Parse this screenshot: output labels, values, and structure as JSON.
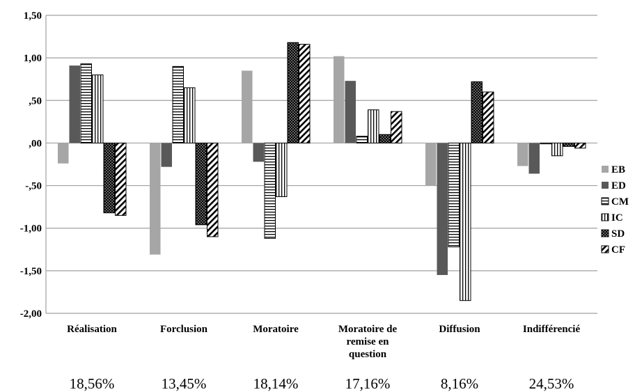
{
  "chart_data": {
    "type": "bar",
    "title": "",
    "xlabel": "",
    "ylabel": "",
    "ylim": [
      -2.0,
      1.5
    ],
    "y_ticks": [
      "1,50",
      "1,00",
      ",50",
      ",00",
      "-,50",
      "-1,00",
      "-1,50",
      "-2,00"
    ],
    "y_tick_values": [
      1.5,
      1.0,
      0.5,
      0.0,
      -0.5,
      -1.0,
      -1.5,
      -2.0
    ],
    "grid": "horizontal",
    "legend_position": "right",
    "categories": [
      [
        "Réalisation"
      ],
      [
        "Forclusion"
      ],
      [
        "Moratoire"
      ],
      [
        "Moratoire de",
        "remise en",
        "question"
      ],
      [
        "Diffusion"
      ],
      [
        "Indifférencié"
      ]
    ],
    "category_percentages": [
      "18,56%",
      "13,45%",
      "18,14%",
      "17,16%",
      "8,16%",
      "24,53%"
    ],
    "series": [
      {
        "name": "EB",
        "pattern": "solid-light",
        "color": "#a6a6a6",
        "values": [
          -0.24,
          -1.31,
          0.85,
          1.02,
          -0.5,
          -0.27
        ]
      },
      {
        "name": "ED",
        "pattern": "solid-dark",
        "color": "#595959",
        "values": [
          0.91,
          -0.28,
          -0.22,
          0.73,
          -1.55,
          -0.36
        ]
      },
      {
        "name": "CM",
        "pattern": "horizontal-stripes",
        "color": "#000000",
        "values": [
          0.93,
          0.9,
          -1.12,
          0.08,
          -1.22,
          -0.01
        ]
      },
      {
        "name": "IC",
        "pattern": "vertical-stripes",
        "color": "#000000",
        "values": [
          0.8,
          0.65,
          -0.63,
          0.39,
          -1.85,
          -0.15
        ]
      },
      {
        "name": "SD",
        "pattern": "dotted-black",
        "color": "#000000",
        "values": [
          -0.82,
          -0.96,
          1.18,
          0.1,
          0.72,
          -0.04
        ]
      },
      {
        "name": "CF",
        "pattern": "diagonal-stripes",
        "color": "#000000",
        "values": [
          -0.85,
          -1.1,
          1.16,
          0.37,
          0.6,
          -0.06
        ]
      }
    ]
  }
}
